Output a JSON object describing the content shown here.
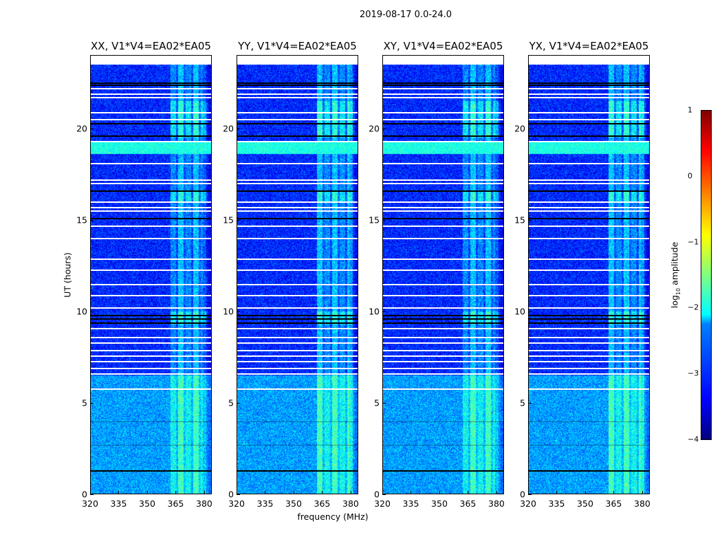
{
  "title": "2019-08-17 0.0-24.0",
  "chart_data": {
    "type": "heatmap",
    "title": "2019-08-17 0.0-24.0",
    "xlabel": "frequency (MHz)",
    "ylabel": "UT (hours)",
    "xlim": [
      320,
      384
    ],
    "ylim": [
      0,
      24
    ],
    "xticks": [
      "320",
      "335",
      "350",
      "365",
      "380"
    ],
    "yticks": [
      "0",
      "5",
      "10",
      "15",
      "20"
    ],
    "panels": [
      {
        "title": "XX, V1*V4=EA02*EA05"
      },
      {
        "title": "YY, V1*V4=EA02*EA05"
      },
      {
        "title": "XY, V1*V4=EA02*EA05"
      },
      {
        "title": "YX, V1*V4=EA02*EA05"
      }
    ],
    "colorbar": {
      "label": "log10 amplitude",
      "label_main": "log",
      "label_sub": "10",
      "label_rest": " amplitude",
      "range": [
        -4,
        1
      ],
      "ticks": [
        "1",
        "0",
        "−1",
        "−2",
        "−3",
        "−4"
      ],
      "colormap": "jet"
    },
    "data_extent_hours": [
      0,
      23.5
    ],
    "rfi_band_mhz": [
      362,
      382
    ],
    "broadband_rfi_hours": [
      18.6,
      19.3
    ],
    "background_level": {
      "below_6_5h": -2.6,
      "above_6_5h": -3.2
    },
    "flagged_white_hours": [
      22.2,
      21.9,
      21.7,
      20.9,
      20.5,
      19.3,
      18.1,
      17.2,
      17.0,
      16.0,
      15.7,
      15.5,
      14.7,
      14.0,
      12.9,
      12.3,
      11.5,
      10.9,
      10.2,
      9.1,
      8.6,
      8.3,
      7.9,
      7.6,
      7.3,
      6.9,
      6.6,
      5.8
    ],
    "dark_gap_hours": [
      22.5,
      22.4,
      20.5,
      20.3,
      19.6,
      17.2,
      16.6,
      15.1,
      9.8,
      9.6,
      9.4,
      9.1,
      7.6,
      1.3,
      4.0,
      2.7
    ]
  }
}
